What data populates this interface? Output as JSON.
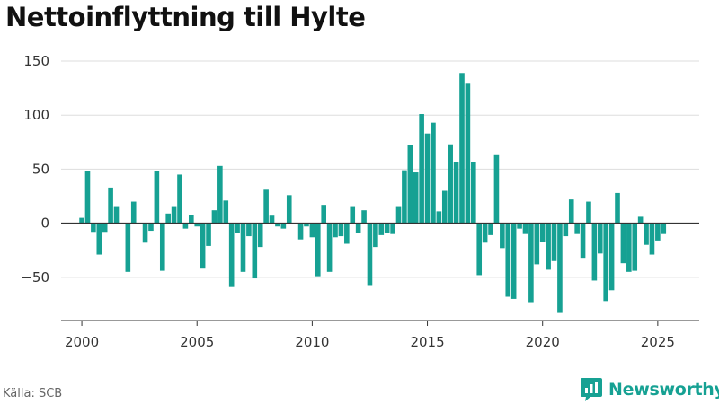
{
  "title": "Nettoinflyttning till Hylte",
  "source": "Källa: SCB",
  "brand": {
    "name": "Newsworthy",
    "icon": "newsworthy-logo-icon"
  },
  "colors": {
    "bar": "#16a193",
    "axis": "#333333",
    "grid": "#dddddd",
    "brand": "#16a193"
  },
  "chart_data": {
    "type": "bar",
    "title": "Nettoinflyttning till Hylte",
    "xlabel": "",
    "ylabel": "",
    "x_ticks": [
      "2000",
      "2005",
      "2010",
      "2015",
      "2020",
      "2025"
    ],
    "y_ticks": [
      "−50",
      "0",
      "50",
      "100",
      "150"
    ],
    "ylim": [
      -90,
      155
    ],
    "xlim": [
      1999.1,
      2026.8
    ],
    "grid": true,
    "legend": "none",
    "series": [
      {
        "x": [
          2000.0,
          2000.25,
          2000.5,
          2000.75,
          2001.0,
          2001.25,
          2001.5,
          2001.75,
          2002.0,
          2002.25,
          2002.5,
          2002.75,
          2003.0,
          2003.25,
          2003.5,
          2003.75,
          2004.0,
          2004.25,
          2004.5,
          2004.75,
          2005.0,
          2005.25,
          2005.5,
          2005.75,
          2006.0,
          2006.25,
          2006.5,
          2006.75,
          2007.0,
          2007.25,
          2007.5,
          2007.75,
          2008.0,
          2008.25,
          2008.5,
          2008.75,
          2009.0,
          2009.25,
          2009.5,
          2009.75,
          2010.0,
          2010.25,
          2010.5,
          2010.75,
          2011.0,
          2011.25,
          2011.5,
          2011.75,
          2012.0,
          2012.25,
          2012.5,
          2012.75,
          2013.0,
          2013.25,
          2013.5,
          2013.75,
          2014.0,
          2014.25,
          2014.5,
          2014.75,
          2015.0,
          2015.25,
          2015.5,
          2015.75,
          2016.0,
          2016.25,
          2016.5,
          2016.75,
          2017.0,
          2017.25,
          2017.5,
          2017.75,
          2018.0,
          2018.25,
          2018.5,
          2018.75,
          2019.0,
          2019.25,
          2019.5,
          2019.75,
          2020.0,
          2020.25,
          2020.5,
          2020.75,
          2021.0,
          2021.25,
          2021.5,
          2021.75,
          2022.0,
          2022.25,
          2022.5,
          2022.75,
          2023.0,
          2023.25,
          2023.5,
          2023.75,
          2024.0,
          2024.25,
          2024.5,
          2024.75,
          2025.0,
          2025.25
        ],
        "values": [
          5,
          48,
          -8,
          -29,
          -8,
          33,
          15,
          0,
          -45,
          20,
          0,
          -18,
          -7,
          48,
          -44,
          9,
          15,
          45,
          -5,
          8,
          -3,
          -42,
          -21,
          12,
          53,
          21,
          -59,
          -9,
          -45,
          -12,
          -51,
          -22,
          31,
          7,
          -3,
          -5,
          26,
          0,
          -15,
          -3,
          -13,
          -49,
          17,
          -45,
          -13,
          -12,
          -19,
          15,
          -9,
          12,
          -58,
          -22,
          -11,
          -9,
          -10,
          15,
          49,
          72,
          47,
          101,
          83,
          93,
          11,
          30,
          73,
          57,
          139,
          129,
          57,
          -48,
          -18,
          -11,
          63,
          -23,
          -68,
          -70,
          -5,
          -10,
          -73,
          -38,
          -17,
          -43,
          -35,
          -83,
          -12,
          22,
          -10,
          -32,
          20,
          -53,
          -28,
          -72,
          -62,
          28,
          -37,
          -45,
          -44,
          6,
          -20,
          -29,
          -16,
          -10
        ]
      }
    ]
  }
}
